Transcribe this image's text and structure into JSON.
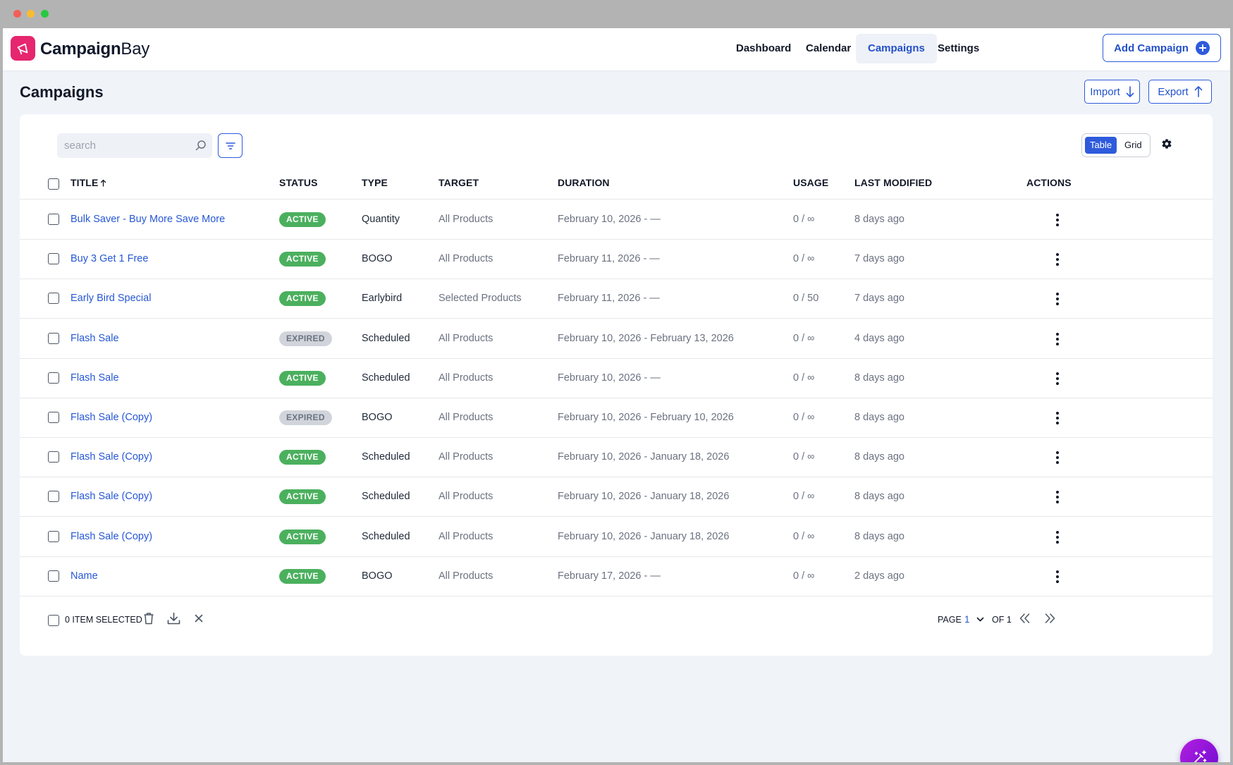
{
  "app": {
    "brand_bold": "Campaign",
    "brand_regular": "Bay"
  },
  "nav": {
    "items": [
      {
        "label": "Dashboard"
      },
      {
        "label": "Calendar"
      },
      {
        "label": "Campaigns",
        "active": true
      },
      {
        "label": "Settings"
      }
    ],
    "add_button": "Add Campaign"
  },
  "page": {
    "title": "Campaigns",
    "import_label": "Import",
    "export_label": "Export"
  },
  "toolbar": {
    "search_placeholder": "search",
    "view_options": [
      "Table",
      "Grid"
    ],
    "selected_view": "Table"
  },
  "table": {
    "columns": {
      "title": "TITLE",
      "status": "STATUS",
      "type": "TYPE",
      "target": "TARGET",
      "duration": "DURATION",
      "usage": "USAGE",
      "last_modified": "LAST MODIFIED",
      "actions": "ACTIONS"
    },
    "sort": {
      "column": "TITLE",
      "direction": "ascending"
    },
    "rows": [
      {
        "title": "Bulk Saver - Buy More Save More",
        "status": "ACTIVE",
        "type": "Quantity",
        "target": "All Products",
        "duration": "February 10, 2026 - —",
        "usage": "0 / ∞",
        "modified": "8 days ago"
      },
      {
        "title": "Buy 3 Get 1 Free",
        "status": "ACTIVE",
        "type": "BOGO",
        "target": "All Products",
        "duration": "February 11, 2026 - —",
        "usage": "0 / ∞",
        "modified": "7 days ago"
      },
      {
        "title": "Early Bird Special",
        "status": "ACTIVE",
        "type": "Earlybird",
        "target": "Selected Products",
        "duration": "February 11, 2026 - —",
        "usage": "0 / 50",
        "modified": "7 days ago"
      },
      {
        "title": "Flash Sale",
        "status": "EXPIRED",
        "type": "Scheduled",
        "target": "All Products",
        "duration": "February 10, 2026 - February 13, 2026",
        "usage": "0 / ∞",
        "modified": "4 days ago"
      },
      {
        "title": "Flash Sale",
        "status": "ACTIVE",
        "type": "Scheduled",
        "target": "All Products",
        "duration": "February 10, 2026 - —",
        "usage": "0 / ∞",
        "modified": "8 days ago"
      },
      {
        "title": "Flash Sale (Copy)",
        "status": "EXPIRED",
        "type": "BOGO",
        "target": "All Products",
        "duration": "February 10, 2026 - February 10, 2026",
        "usage": "0 / ∞",
        "modified": "8 days ago"
      },
      {
        "title": "Flash Sale (Copy)",
        "status": "ACTIVE",
        "type": "Scheduled",
        "target": "All Products",
        "duration": "February 10, 2026 - January 18, 2026",
        "usage": "0 / ∞",
        "modified": "8 days ago"
      },
      {
        "title": "Flash Sale (Copy)",
        "status": "ACTIVE",
        "type": "Scheduled",
        "target": "All Products",
        "duration": "February 10, 2026 - January 18, 2026",
        "usage": "0 / ∞",
        "modified": "8 days ago"
      },
      {
        "title": "Flash Sale (Copy)",
        "status": "ACTIVE",
        "type": "Scheduled",
        "target": "All Products",
        "duration": "February 10, 2026 - January 18, 2026",
        "usage": "0 / ∞",
        "modified": "8 days ago"
      },
      {
        "title": "Name",
        "status": "ACTIVE",
        "type": "BOGO",
        "target": "All Products",
        "duration": "February 17, 2026 - —",
        "usage": "0 / ∞",
        "modified": "2 days ago"
      }
    ]
  },
  "footer": {
    "selected_label": "0 ITEM SELECTED",
    "page_label": "PAGE",
    "page_value": "1",
    "of_label": "OF 1"
  },
  "icons": {
    "logo": "megaphone-icon",
    "add": "plus-circle-icon",
    "import": "arrow-down-icon",
    "export": "arrow-up-icon",
    "search": "search-icon",
    "filter": "filter-icon",
    "settings": "gear-icon",
    "sort": "sort-up-arrow-icon",
    "row_actions": "kebab-menu-icon",
    "delete": "trash-icon",
    "download": "download-icon",
    "clear": "close-icon",
    "first_page": "double-chevron-left-icon",
    "last_page": "double-chevron-right-icon",
    "fab": "magic-wand-icon"
  },
  "colors": {
    "accent": "#2e5bdc",
    "brand": "#e6266f",
    "active_badge": "#4bb05e",
    "expired_badge": "#d1d5db",
    "fab": "#9a17de"
  }
}
